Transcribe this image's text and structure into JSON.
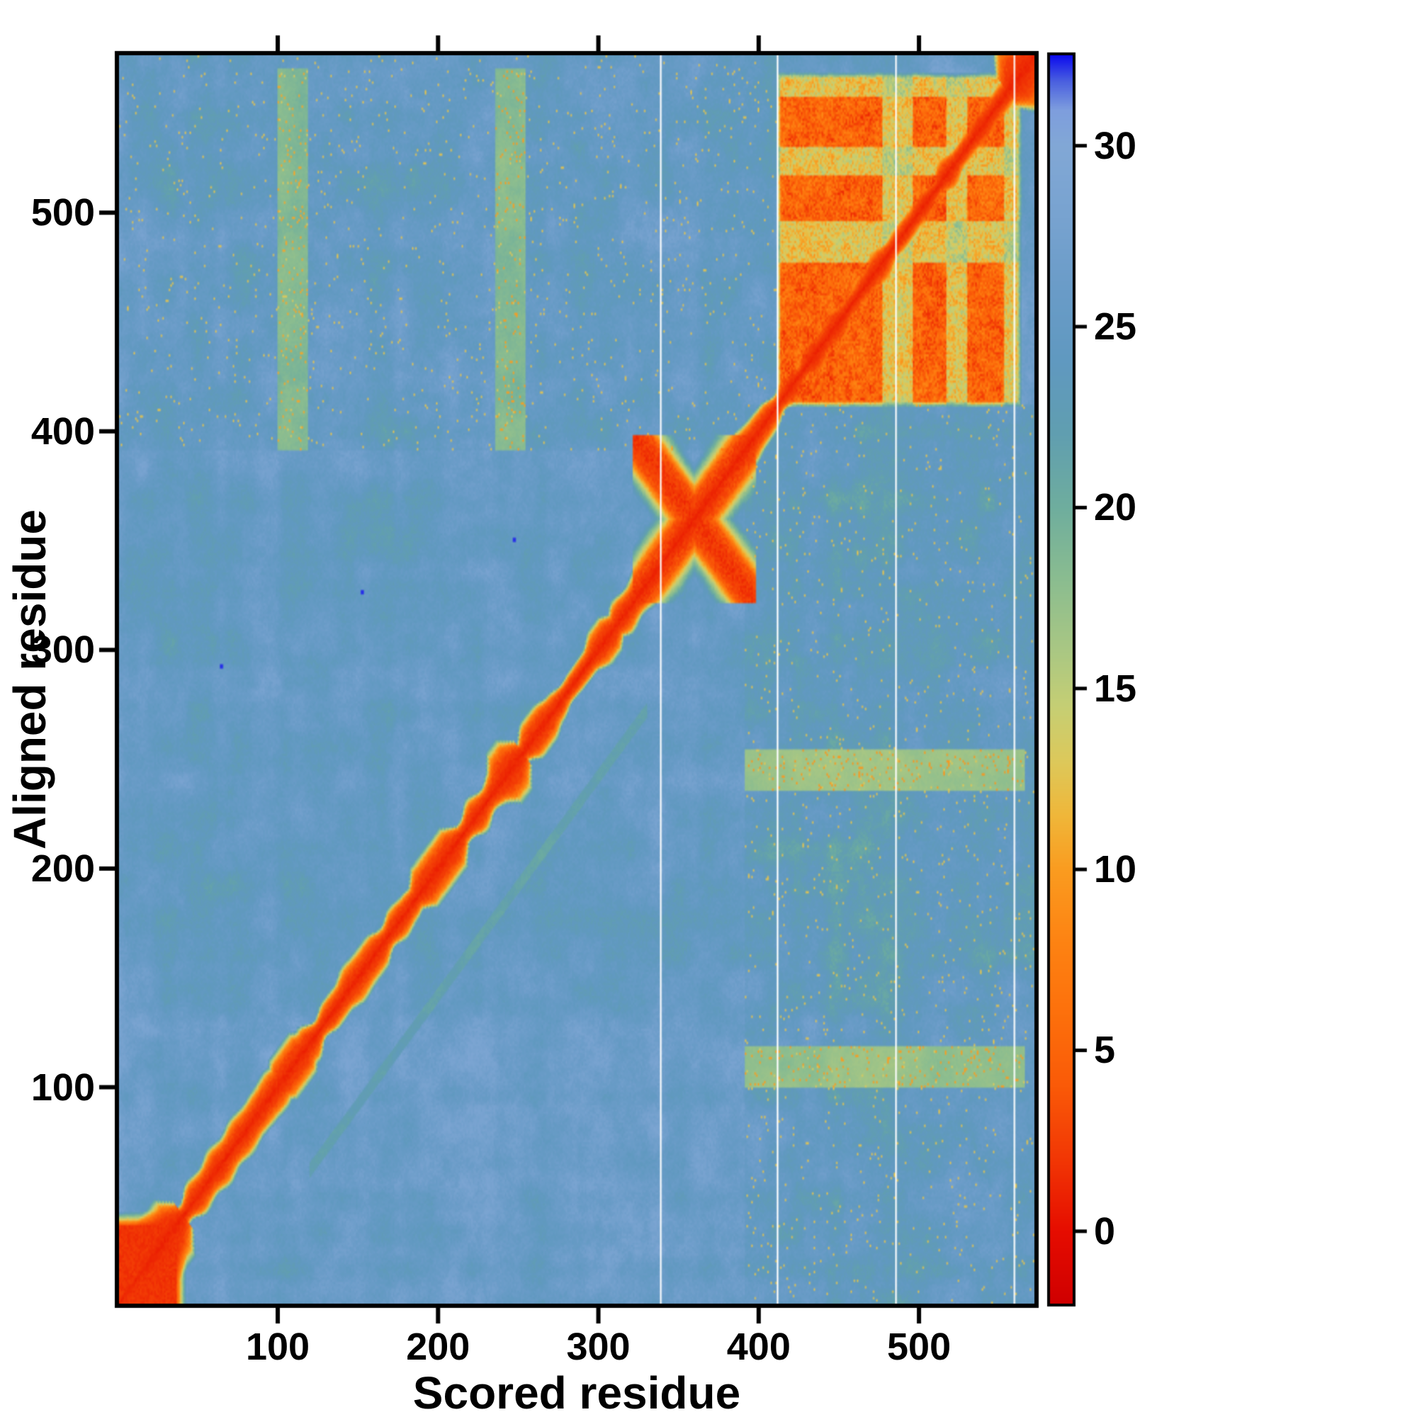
{
  "chart_data": {
    "type": "heatmap",
    "title": "",
    "xlabel": "Scored residue",
    "ylabel": "Aligned residue",
    "x_range": [
      1,
      572
    ],
    "y_range": [
      1,
      572
    ],
    "x_ticks": [
      100,
      200,
      300,
      400,
      500
    ],
    "y_ticks": [
      100,
      200,
      300,
      400,
      500
    ],
    "grid": false,
    "colorbar": {
      "position": "right",
      "range": [
        -2,
        32.5
      ],
      "ticks": [
        0,
        5,
        10,
        15,
        20,
        25,
        30
      ],
      "stops": [
        [
          -2,
          "#d00000"
        ],
        [
          0,
          "#e60d00"
        ],
        [
          2,
          "#f23705"
        ],
        [
          4,
          "#fa5a08"
        ],
        [
          6,
          "#fd700c"
        ],
        [
          8,
          "#fe8313"
        ],
        [
          10,
          "#fa9c20"
        ],
        [
          11.5,
          "#f0b73a"
        ],
        [
          13,
          "#ddc95b"
        ],
        [
          14.5,
          "#c6cf74"
        ],
        [
          16,
          "#abc883"
        ],
        [
          18,
          "#8bbd90"
        ],
        [
          20,
          "#6fae9e"
        ],
        [
          22,
          "#619fb0"
        ],
        [
          24,
          "#6099c0"
        ],
        [
          26,
          "#6a9cc8"
        ],
        [
          28,
          "#78a3d0"
        ],
        [
          30,
          "#82a8d6"
        ],
        [
          31,
          "#7e9ede"
        ],
        [
          31.8,
          "#4a5fe0"
        ],
        [
          32.5,
          "#0d0dee"
        ]
      ]
    },
    "field": {
      "base_value": 25.1,
      "noise_coarse": 1.6,
      "noise_mid": 0.8,
      "noise_fine": 0.9
    },
    "features": {
      "diagonal": {
        "value": 0.7,
        "base_width": 4.5,
        "width_noise": 1.8,
        "bulges": [
          [
            14,
            40,
            10
          ],
          [
            98,
            120,
            7
          ],
          [
            186,
            214,
            7
          ],
          [
            236,
            252,
            9
          ],
          [
            296,
            312,
            6
          ],
          [
            556,
            572,
            12
          ]
        ]
      },
      "origin_blob": {
        "end": 36,
        "value": 1.3
      },
      "cross": {
        "start": 322,
        "end": 398,
        "center": 360,
        "value": 2,
        "arm_width": 27
      },
      "block": {
        "start": 412,
        "end": 564,
        "stripe_value": 5,
        "gap_value": 12.5,
        "speckle": 2.6,
        "gaps": [
          [
            478,
            496
          ],
          [
            518,
            530
          ],
          [
            554,
            564
          ]
        ]
      },
      "sym_streaks": [
        {
          "band": [
            100,
            118
          ],
          "span": [
            392,
            566
          ],
          "value": 13.5
        },
        {
          "band": [
            236,
            254
          ],
          "span": [
            392,
            566
          ],
          "value": 13
        }
      ],
      "tint_regions": [
        {
          "x": [
            1,
            412
          ],
          "y": [
            392,
            572
          ],
          "dv": -1.1
        },
        {
          "x": [
            392,
            572
          ],
          "y": [
            1,
            412
          ],
          "dv": -1.1
        }
      ],
      "faint_diagonal": {
        "offset": 58,
        "range": [
          120,
          330
        ],
        "value": 18.5,
        "width": 4
      },
      "blue_dots": [
        [
          152,
          326
        ],
        [
          247,
          350
        ],
        [
          64,
          292
        ]
      ],
      "missing_columns": [
        339,
        412,
        486,
        560
      ]
    }
  }
}
